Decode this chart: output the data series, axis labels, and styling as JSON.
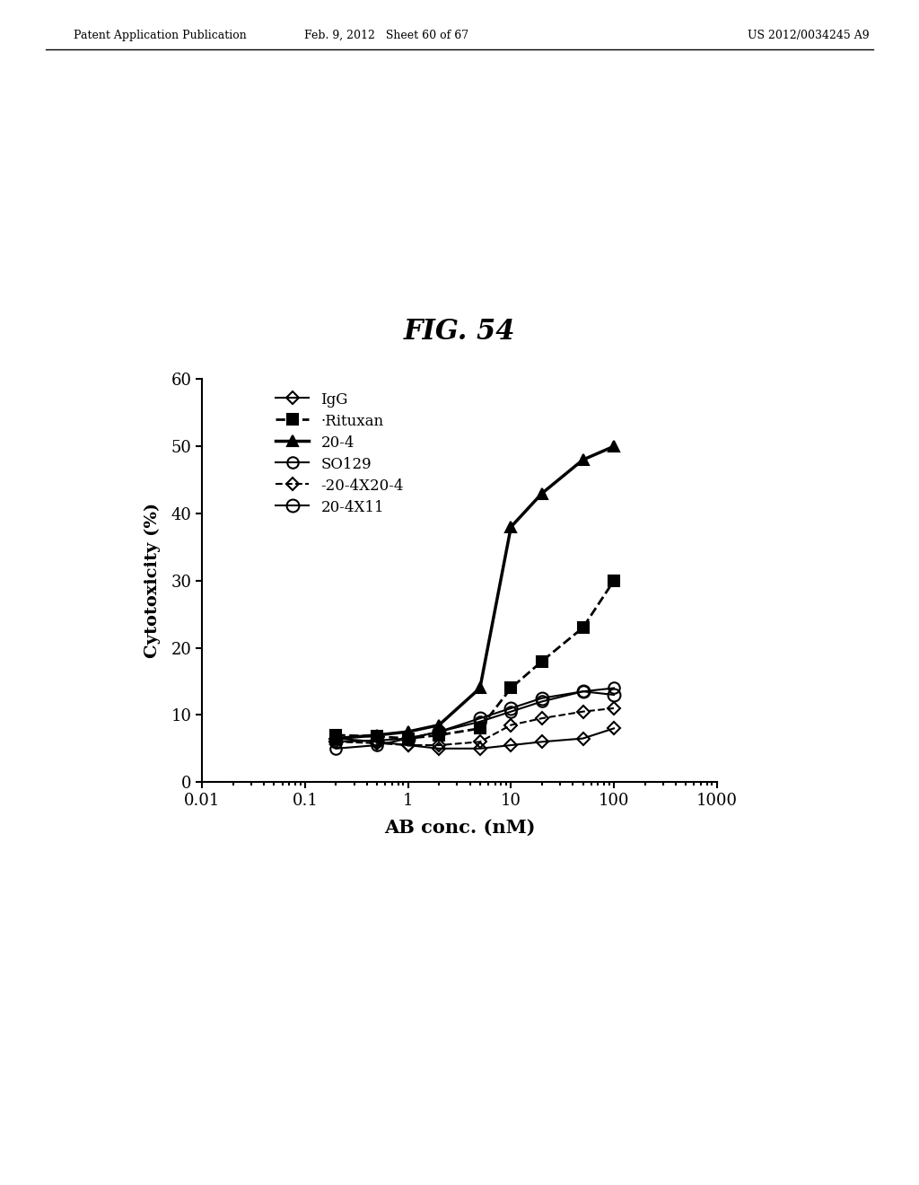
{
  "title": "FIG. 54",
  "xlabel": "AB conc. (nM)",
  "ylabel": "Cytotoxicity (%)",
  "xlim": [
    0.01,
    1000
  ],
  "ylim": [
    0,
    60
  ],
  "yticks": [
    0,
    10,
    20,
    30,
    40,
    50,
    60
  ],
  "xticks": [
    0.01,
    0.1,
    1,
    10,
    100,
    1000
  ],
  "xticklabels": [
    "0.01",
    "0.1",
    "1",
    "10",
    "100",
    "1000"
  ],
  "header_left": "Patent Application Publication",
  "header_mid": "Feb. 9, 2012   Sheet 60 of 67",
  "header_right": "US 2012/0034245 A9",
  "series": {
    "IgG": {
      "x": [
        0.2,
        0.5,
        1.0,
        2.0,
        5.0,
        10.0,
        20.0,
        50.0,
        100.0
      ],
      "y": [
        6.5,
        6.0,
        5.5,
        5.0,
        5.0,
        5.5,
        6.0,
        6.5,
        8.0
      ],
      "color": "black",
      "linestyle": "-",
      "marker": "D",
      "markersize": 7,
      "linewidth": 1.5,
      "fillstyle": "none"
    },
    "Rituxan": {
      "x": [
        0.2,
        0.5,
        1.0,
        2.0,
        5.0,
        10.0,
        20.0,
        50.0,
        100.0
      ],
      "y": [
        7.0,
        6.8,
        6.5,
        7.0,
        8.0,
        14.0,
        18.0,
        23.0,
        30.0
      ],
      "color": "black",
      "linestyle": "--",
      "marker": "s",
      "markersize": 9,
      "linewidth": 2.0,
      "fillstyle": "full"
    },
    "20-4": {
      "x": [
        0.2,
        0.5,
        1.0,
        2.0,
        5.0,
        10.0,
        20.0,
        50.0,
        100.0
      ],
      "y": [
        6.5,
        7.0,
        7.5,
        8.5,
        14.0,
        38.0,
        43.0,
        48.0,
        50.0
      ],
      "color": "black",
      "linestyle": "-",
      "marker": "^",
      "markersize": 9,
      "linewidth": 2.5,
      "fillstyle": "full"
    },
    "SO129": {
      "x": [
        0.2,
        0.5,
        1.0,
        2.0,
        5.0,
        10.0,
        20.0,
        50.0,
        100.0
      ],
      "y": [
        5.0,
        5.5,
        6.5,
        7.5,
        9.0,
        10.5,
        12.0,
        13.5,
        14.0
      ],
      "color": "black",
      "linestyle": "-",
      "marker": "o",
      "markersize": 9,
      "linewidth": 1.5,
      "fillstyle": "none"
    },
    "20-4X20-4": {
      "x": [
        0.2,
        0.5,
        1.0,
        2.0,
        5.0,
        10.0,
        20.0,
        50.0,
        100.0
      ],
      "y": [
        6.0,
        5.8,
        5.5,
        5.5,
        6.0,
        8.5,
        9.5,
        10.5,
        11.0
      ],
      "color": "black",
      "linestyle": "--",
      "marker": "D",
      "markersize": 7,
      "linewidth": 1.5,
      "fillstyle": "none"
    },
    "20-4X11": {
      "x": [
        0.2,
        0.5,
        1.0,
        2.0,
        5.0,
        10.0,
        20.0,
        50.0,
        100.0
      ],
      "y": [
        6.0,
        6.2,
        6.5,
        7.5,
        9.5,
        11.0,
        12.5,
        13.5,
        13.0
      ],
      "color": "black",
      "linestyle": "-",
      "marker": "o",
      "markersize": 10,
      "linewidth": 1.5,
      "fillstyle": "none"
    }
  },
  "legend_labels": [
    "IgG",
    "·Rituxan",
    "20-4",
    "SO129",
    "-20-4X20-4",
    "20-4X11"
  ],
  "background_color": "#ffffff"
}
